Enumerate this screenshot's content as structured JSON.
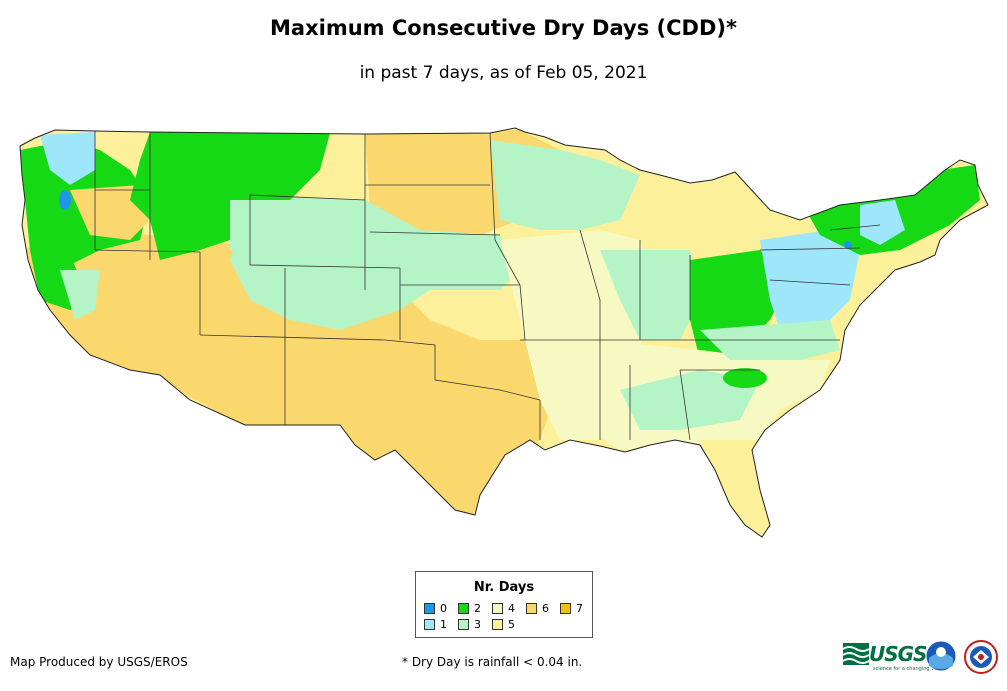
{
  "header": {
    "title": "Maximum Consecutive Dry Days (CDD)*",
    "subtitle": "in past 7 days, as of Feb 05, 2021"
  },
  "legend": {
    "title": "Nr. Days",
    "items": [
      {
        "label": "0",
        "color": "#1f97e8"
      },
      {
        "label": "1",
        "color": "#9ee6fa"
      },
      {
        "label": "2",
        "color": "#16d916"
      },
      {
        "label": "3",
        "color": "#b4f4c6"
      },
      {
        "label": "4",
        "color": "#f7f9c2"
      },
      {
        "label": "5",
        "color": "#fdf09a"
      },
      {
        "label": "6",
        "color": "#fbd86d"
      },
      {
        "label": "7",
        "color": "#f5c400"
      }
    ]
  },
  "footer": {
    "credit": "Map Produced by USGS/EROS",
    "footnote": "* Dry Day is rainfall < 0.04 in.",
    "logo_text": "USGS",
    "logo_tagline": "science for a changing world"
  },
  "map": {
    "region": "Contiguous United States",
    "category_colors_by_region": {
      "pacific_northwest_coast": "#16d916",
      "western_washington": "#9ee6fa",
      "northern_rockies": "#16d916",
      "great_basin_southwest": "#fbd86d",
      "northern_plains": "#fbd86d",
      "central_plains": "#b4f4c6",
      "southern_plains": "#fbd86d",
      "mississippi_valley": "#f7f9c2",
      "ohio_valley": "#16d916",
      "great_lakes": "#b4f4c6",
      "northeast": "#16d916",
      "mid_atlantic": "#9ee6fa",
      "southeast": "#f7f9c2",
      "florida": "#fdf09a"
    }
  }
}
